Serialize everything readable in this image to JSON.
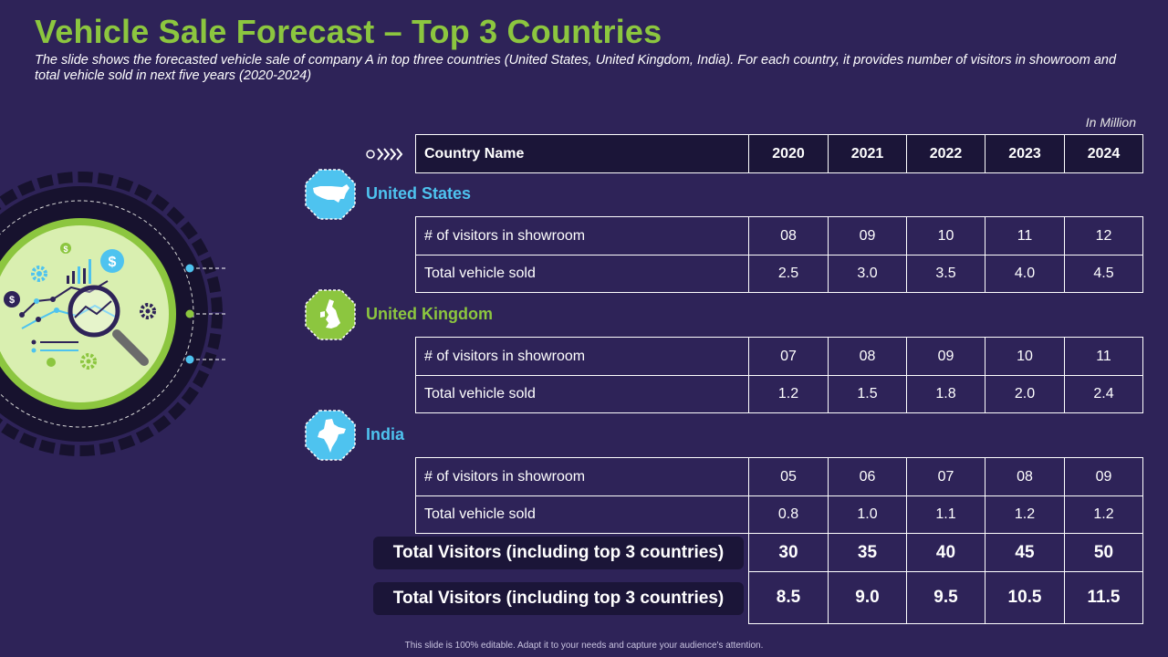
{
  "title": "Vehicle Sale Forecast – Top 3 Countries",
  "subtitle": "The slide shows the forecasted vehicle sale of company A in top three countries (United States, United Kingdom, India). For each country, it provides number of visitors in showroom and total vehicle sold in next five years (2020-2024)",
  "unit_note": "In Million",
  "colors": {
    "background": "#2e2358",
    "accent_green": "#8cc63f",
    "accent_blue": "#4ec3ef",
    "dark": "#1b1538"
  },
  "table": {
    "header": {
      "label": "Country Name",
      "years": [
        "2020",
        "2021",
        "2022",
        "2023",
        "2024"
      ]
    },
    "countries": [
      {
        "name": "United States",
        "icon": "usa-map-icon",
        "rows": [
          {
            "label": "# of visitors in showroom",
            "values": [
              "08",
              "09",
              "10",
              "11",
              "12"
            ]
          },
          {
            "label": "Total vehicle sold",
            "values": [
              "2.5",
              "3.0",
              "3.5",
              "4.0",
              "4.5"
            ]
          }
        ]
      },
      {
        "name": "United Kingdom",
        "icon": "uk-map-icon",
        "rows": [
          {
            "label": "# of visitors in showroom",
            "values": [
              "07",
              "08",
              "09",
              "10",
              "11"
            ]
          },
          {
            "label": "Total vehicle sold",
            "values": [
              "1.2",
              "1.5",
              "1.8",
              "2.0",
              "2.4"
            ]
          }
        ]
      },
      {
        "name": "India",
        "icon": "india-map-icon",
        "rows": [
          {
            "label": "# of visitors in showroom",
            "values": [
              "05",
              "06",
              "07",
              "08",
              "09"
            ]
          },
          {
            "label": "Total vehicle sold",
            "values": [
              "0.8",
              "1.0",
              "1.1",
              "1.2",
              "1.2"
            ]
          }
        ]
      }
    ],
    "totals": [
      {
        "label": "Total Visitors (including top 3 countries)",
        "values": [
          "30",
          "35",
          "40",
          "45",
          "50"
        ]
      },
      {
        "label": "Total Visitors (including top 3 countries)",
        "values": [
          "8.5",
          "9.0",
          "9.5",
          "10.5",
          "11.5"
        ]
      }
    ]
  },
  "footer": "This slide is 100% editable. Adapt it to your needs and capture your audience's attention."
}
